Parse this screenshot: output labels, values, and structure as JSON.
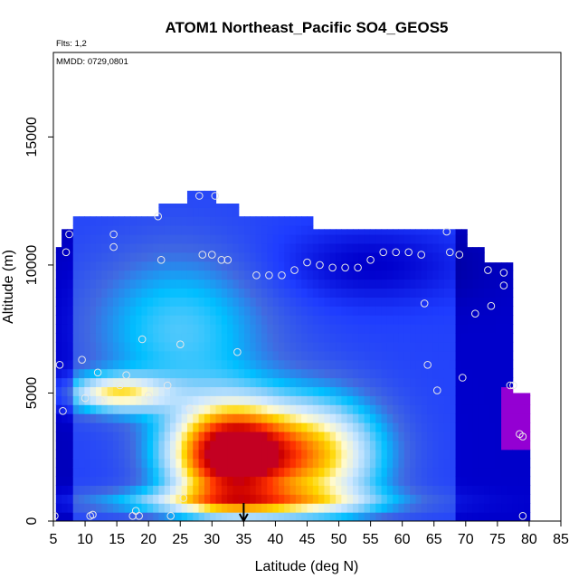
{
  "chart_data": {
    "type": "heatmap",
    "title": "ATOM1 Northeast_Pacific SO4_GEOS5",
    "flights_note": "Flts: 1,2",
    "date_note": "MMDD: 0729,0801",
    "xlabel": "Latitude (deg N)",
    "ylabel": "Altitude (m)",
    "xlim": [
      5,
      85
    ],
    "ylim": [
      0,
      18300
    ],
    "x_ticks": [
      5,
      10,
      15,
      20,
      25,
      30,
      35,
      40,
      45,
      50,
      55,
      60,
      65,
      70,
      75,
      80,
      85
    ],
    "y_ticks": [
      0,
      5000,
      10000,
      15000
    ],
    "grid": false,
    "marker_latitude": 35,
    "colormap": [
      "#00008b",
      "#0000cd",
      "#1e3cff",
      "#4169e1",
      "#00bfff",
      "#87cefa",
      "#cfe8ff",
      "#fffacd",
      "#ffd700",
      "#ff8c00",
      "#ff3300",
      "#cc0000",
      "#9400d3"
    ],
    "flight_track": [
      [
        5.2,
        200
      ],
      [
        6.0,
        6100
      ],
      [
        6.5,
        4300
      ],
      [
        7.0,
        10500
      ],
      [
        7.5,
        11200
      ],
      [
        9.5,
        6300
      ],
      [
        10.0,
        4800
      ],
      [
        10.8,
        200
      ],
      [
        11.2,
        250
      ],
      [
        12.0,
        5800
      ],
      [
        12.5,
        4700
      ],
      [
        14.5,
        11200
      ],
      [
        14.5,
        10700
      ],
      [
        15.5,
        5300
      ],
      [
        16.5,
        5700
      ],
      [
        17.5,
        200
      ],
      [
        18.0,
        400
      ],
      [
        18.5,
        200
      ],
      [
        19.0,
        7100
      ],
      [
        20.0,
        4900
      ],
      [
        21.5,
        11900
      ],
      [
        22.0,
        10200
      ],
      [
        23.0,
        5300
      ],
      [
        23.5,
        200
      ],
      [
        25.0,
        6900
      ],
      [
        25.5,
        900
      ],
      [
        26.5,
        4400
      ],
      [
        28.0,
        12700
      ],
      [
        28.5,
        10400
      ],
      [
        30.0,
        10400
      ],
      [
        30.5,
        12700
      ],
      [
        31.5,
        10200
      ],
      [
        32.5,
        10200
      ],
      [
        34.0,
        6600
      ],
      [
        37.0,
        9600
      ],
      [
        39.0,
        9600
      ],
      [
        41.0,
        9600
      ],
      [
        43.0,
        9800
      ],
      [
        45.0,
        10100
      ],
      [
        47.0,
        10000
      ],
      [
        49.0,
        9900
      ],
      [
        51.0,
        9900
      ],
      [
        53.0,
        9900
      ],
      [
        55.0,
        10200
      ],
      [
        57.0,
        10500
      ],
      [
        59.0,
        10500
      ],
      [
        61.0,
        10500
      ],
      [
        63.0,
        10400
      ],
      [
        63.5,
        8500
      ],
      [
        64.0,
        6100
      ],
      [
        65.5,
        5100
      ],
      [
        67.0,
        11300
      ],
      [
        67.5,
        10500
      ],
      [
        69.0,
        10400
      ],
      [
        69.5,
        5600
      ],
      [
        71.5,
        8100
      ],
      [
        73.5,
        9800
      ],
      [
        74.0,
        8400
      ],
      [
        76.0,
        9700
      ],
      [
        76.0,
        9200
      ],
      [
        77.0,
        5300
      ],
      [
        77.5,
        5300
      ],
      [
        78.5,
        3400
      ],
      [
        79.0,
        3300
      ],
      [
        79.0,
        200
      ]
    ]
  }
}
